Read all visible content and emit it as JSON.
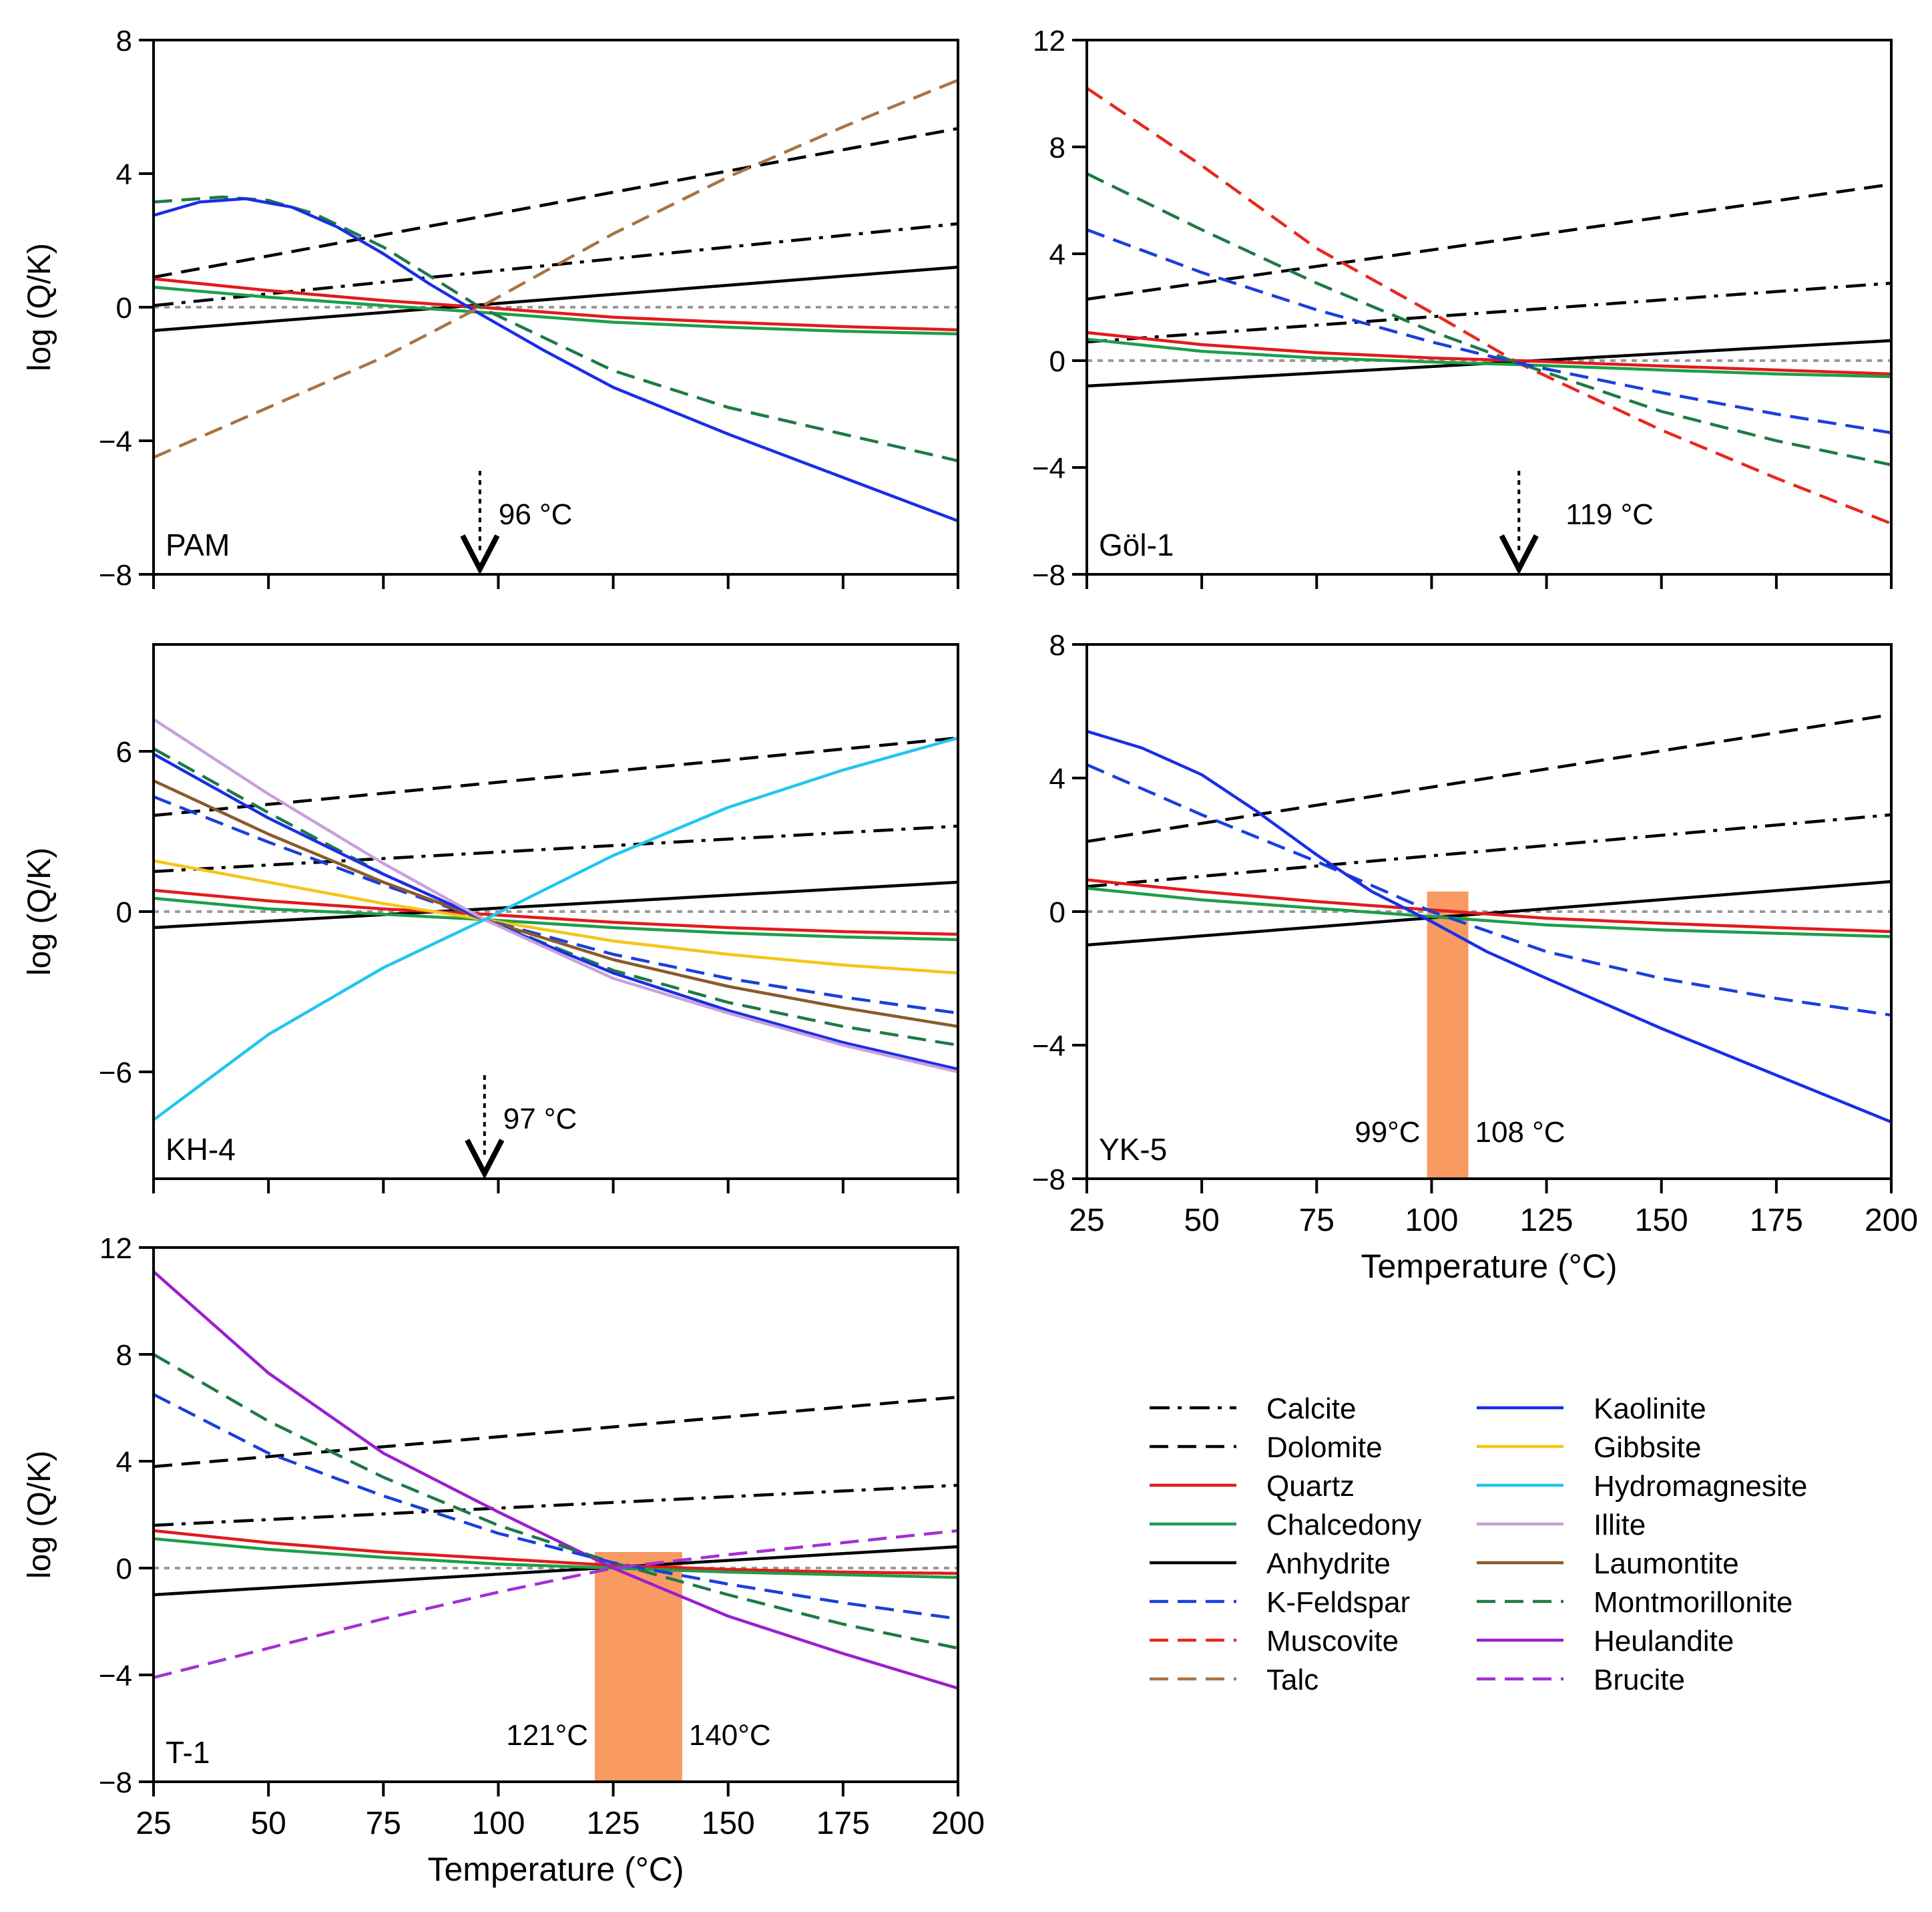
{
  "colors": {
    "Calcite": "#000000",
    "Dolomite": "#000000",
    "Quartz": "#e31a1c",
    "Chalcedony": "#1e9e4a",
    "Anhydrite": "#000000",
    "K-Feldspar": "#1a3fdc",
    "Muscovite": "#e8281e",
    "Talc": "#a87445",
    "Kaolinite": "#1a2ee6",
    "Gibbsite": "#f5c518",
    "Hydromagnesite": "#22c6ee",
    "Illite": "#c9a0dc",
    "Laumontite": "#8b5a2b",
    "Montmorillonite": "#1d7a45",
    "Heulandite": "#9b1fce",
    "Brucite": "#a42fd6",
    "zero_line": "#999999",
    "band": "#f99a63"
  },
  "styles": {
    "Calcite": "dashdot",
    "Dolomite": "dashed",
    "Quartz": "solid",
    "Chalcedony": "solid",
    "Anhydrite": "solid",
    "K-Feldspar": "dashed",
    "Muscovite": "dashed",
    "Talc": "dashed",
    "Kaolinite": "solid",
    "Gibbsite": "solid",
    "Hydromagnesite": "solid",
    "Illite": "solid",
    "Laumontite": "solid",
    "Montmorillonite": "dashed",
    "Heulandite": "solid",
    "Brucite": "dashed"
  },
  "legend": {
    "col1": [
      "Calcite",
      "Dolomite",
      "Quartz",
      "Chalcedony",
      "Anhydrite",
      "K-Feldspar",
      "Muscovite",
      "Talc"
    ],
    "col2": [
      "Kaolinite",
      "Gibbsite",
      "Hydromagnesite",
      "Illite",
      "Laumontite",
      "Montmorillonite",
      "Heulandite",
      "Brucite"
    ]
  },
  "chart_data": [
    {
      "type": "line",
      "name": "PAM",
      "ylabel": "log (Q/K)",
      "xlabel": "",
      "xlim": [
        25,
        200
      ],
      "ylim": [
        -8,
        8
      ],
      "yticks": [
        -8,
        -4,
        0,
        4,
        8
      ],
      "xticks": [
        25,
        50,
        75,
        100,
        125,
        150,
        175,
        200
      ],
      "show_xticklabels": false,
      "marker": {
        "x": 96,
        "label": "96 °C"
      },
      "series": [
        {
          "name": "Dolomite",
          "x": [
            25,
            200
          ],
          "y": [
            0.9,
            5.35
          ]
        },
        {
          "name": "Calcite",
          "x": [
            25,
            200
          ],
          "y": [
            0.05,
            2.5
          ]
        },
        {
          "name": "Anhydrite",
          "x": [
            25,
            200
          ],
          "y": [
            -0.7,
            1.2
          ]
        },
        {
          "name": "Quartz",
          "x": [
            25,
            50,
            75,
            96,
            125,
            150,
            175,
            200
          ],
          "y": [
            0.85,
            0.5,
            0.2,
            0.0,
            -0.3,
            -0.45,
            -0.58,
            -0.68
          ]
        },
        {
          "name": "Chalcedony",
          "x": [
            25,
            50,
            75,
            96,
            125,
            150,
            175,
            200
          ],
          "y": [
            0.6,
            0.3,
            0.05,
            -0.15,
            -0.45,
            -0.6,
            -0.72,
            -0.8
          ]
        },
        {
          "name": "Montmorillonite",
          "x": [
            25,
            40,
            50,
            60,
            75,
            96,
            125,
            150,
            175,
            200
          ],
          "y": [
            3.15,
            3.3,
            3.2,
            2.8,
            1.8,
            0.0,
            -1.9,
            -3.0,
            -3.8,
            -4.6
          ]
        },
        {
          "name": "Kaolinite",
          "x": [
            25,
            35,
            45,
            55,
            65,
            75,
            85,
            96,
            110,
            125,
            150,
            175,
            200
          ],
          "y": [
            2.75,
            3.15,
            3.25,
            3.0,
            2.4,
            1.6,
            0.7,
            -0.2,
            -1.3,
            -2.4,
            -3.8,
            -5.1,
            -6.4
          ]
        },
        {
          "name": "Talc",
          "x": [
            25,
            50,
            75,
            96,
            125,
            150,
            175,
            200
          ],
          "y": [
            -4.5,
            -3.0,
            -1.5,
            0.0,
            2.2,
            3.9,
            5.4,
            6.8
          ]
        }
      ]
    },
    {
      "type": "line",
      "name": "Göl-1",
      "ylabel": "",
      "xlabel": "",
      "xlim": [
        25,
        200
      ],
      "ylim": [
        -8,
        12
      ],
      "yticks": [
        -8,
        -4,
        0,
        4,
        8,
        12
      ],
      "xticks": [
        25,
        50,
        75,
        100,
        125,
        150,
        175,
        200
      ],
      "show_xticklabels": false,
      "marker": {
        "x": 119,
        "label": "119 °C"
      },
      "series": [
        {
          "name": "Dolomite",
          "x": [
            25,
            200
          ],
          "y": [
            2.3,
            6.6
          ]
        },
        {
          "name": "Calcite",
          "x": [
            25,
            200
          ],
          "y": [
            0.7,
            2.9
          ]
        },
        {
          "name": "Anhydrite",
          "x": [
            25,
            200
          ],
          "y": [
            -0.95,
            0.75
          ]
        },
        {
          "name": "Quartz",
          "x": [
            25,
            50,
            75,
            100,
            119,
            150,
            175,
            200
          ],
          "y": [
            1.05,
            0.6,
            0.3,
            0.1,
            0.0,
            -0.2,
            -0.35,
            -0.5
          ]
        },
        {
          "name": "Chalcedony",
          "x": [
            25,
            50,
            75,
            100,
            119,
            150,
            175,
            200
          ],
          "y": [
            0.8,
            0.35,
            0.1,
            -0.05,
            -0.15,
            -0.35,
            -0.5,
            -0.6
          ]
        },
        {
          "name": "Muscovite",
          "x": [
            25,
            50,
            75,
            100,
            119,
            150,
            175,
            200
          ],
          "y": [
            10.2,
            7.3,
            4.2,
            1.8,
            -0.1,
            -2.6,
            -4.4,
            -6.1
          ]
        },
        {
          "name": "Montmorillonite",
          "x": [
            25,
            50,
            75,
            100,
            119,
            150,
            175,
            200
          ],
          "y": [
            7.0,
            4.9,
            2.9,
            1.1,
            -0.1,
            -1.9,
            -3.0,
            -3.9
          ]
        },
        {
          "name": "K-Feldspar",
          "x": [
            25,
            50,
            75,
            100,
            119,
            150,
            175,
            200
          ],
          "y": [
            4.9,
            3.3,
            1.9,
            0.7,
            -0.1,
            -1.2,
            -2.0,
            -2.7
          ]
        }
      ]
    },
    {
      "type": "line",
      "name": "KH-4",
      "ylabel": "log (Q/K)",
      "xlabel": "",
      "xlim": [
        25,
        200
      ],
      "ylim": [
        -10,
        10
      ],
      "yticks": [
        -6,
        0,
        6
      ],
      "xticks": [
        25,
        50,
        75,
        100,
        125,
        150,
        175,
        200
      ],
      "show_xticklabels": false,
      "marker": {
        "x": 97,
        "label": "97 °C"
      },
      "series": [
        {
          "name": "Dolomite",
          "x": [
            25,
            200
          ],
          "y": [
            3.6,
            6.5
          ]
        },
        {
          "name": "Calcite",
          "x": [
            25,
            200
          ],
          "y": [
            1.5,
            3.2
          ]
        },
        {
          "name": "Anhydrite",
          "x": [
            25,
            200
          ],
          "y": [
            -0.6,
            1.1
          ]
        },
        {
          "name": "Quartz",
          "x": [
            25,
            50,
            75,
            97,
            125,
            150,
            175,
            200
          ],
          "y": [
            0.8,
            0.4,
            0.1,
            -0.1,
            -0.4,
            -0.6,
            -0.75,
            -0.85
          ]
        },
        {
          "name": "Chalcedony",
          "x": [
            25,
            50,
            75,
            97,
            125,
            150,
            175,
            200
          ],
          "y": [
            0.5,
            0.1,
            -0.1,
            -0.3,
            -0.6,
            -0.8,
            -0.95,
            -1.05
          ]
        },
        {
          "name": "Gibbsite",
          "x": [
            25,
            50,
            75,
            97,
            125,
            150,
            175,
            200
          ],
          "y": [
            1.9,
            1.1,
            0.3,
            -0.3,
            -1.1,
            -1.6,
            -2.0,
            -2.3
          ]
        },
        {
          "name": "K-Feldspar",
          "x": [
            25,
            50,
            75,
            97,
            125,
            150,
            175,
            200
          ],
          "y": [
            4.3,
            2.6,
            1.0,
            -0.3,
            -1.6,
            -2.5,
            -3.2,
            -3.8
          ]
        },
        {
          "name": "Laumontite",
          "x": [
            25,
            50,
            75,
            97,
            125,
            150,
            175,
            200
          ],
          "y": [
            4.9,
            2.9,
            1.1,
            -0.3,
            -1.8,
            -2.8,
            -3.6,
            -4.3
          ]
        },
        {
          "name": "Montmorillonite",
          "x": [
            25,
            50,
            75,
            97,
            125,
            150,
            175,
            200
          ],
          "y": [
            6.1,
            3.7,
            1.4,
            -0.3,
            -2.2,
            -3.4,
            -4.3,
            -5.0
          ]
        },
        {
          "name": "Kaolinite",
          "x": [
            25,
            50,
            75,
            97,
            125,
            150,
            175,
            200
          ],
          "y": [
            5.9,
            3.5,
            1.4,
            -0.3,
            -2.3,
            -3.7,
            -4.9,
            -5.9
          ]
        },
        {
          "name": "Illite",
          "x": [
            25,
            50,
            75,
            97,
            125,
            150,
            175,
            200
          ],
          "y": [
            7.2,
            4.4,
            1.8,
            -0.3,
            -2.5,
            -3.8,
            -5.0,
            -6.0
          ]
        },
        {
          "name": "Hydromagnesite",
          "x": [
            25,
            50,
            75,
            97,
            125,
            150,
            175,
            200
          ],
          "y": [
            -7.8,
            -4.6,
            -2.1,
            -0.3,
            2.1,
            3.9,
            5.3,
            6.5
          ]
        }
      ]
    },
    {
      "type": "line",
      "name": "YK-5",
      "ylabel": "",
      "xlabel": "Temperature (°C)",
      "xlim": [
        25,
        200
      ],
      "ylim": [
        -8,
        8
      ],
      "yticks": [
        -8,
        -4,
        0,
        4,
        8
      ],
      "xticks": [
        25,
        50,
        75,
        100,
        125,
        150,
        175,
        200
      ],
      "show_xticklabels": true,
      "band": {
        "from": 99,
        "to": 108,
        "label_left": "99°C",
        "label_right": "108 °C"
      },
      "series": [
        {
          "name": "Dolomite",
          "x": [
            25,
            200
          ],
          "y": [
            2.1,
            5.9
          ]
        },
        {
          "name": "Calcite",
          "x": [
            25,
            200
          ],
          "y": [
            0.75,
            2.9
          ]
        },
        {
          "name": "Anhydrite",
          "x": [
            25,
            200
          ],
          "y": [
            -1.0,
            0.9
          ]
        },
        {
          "name": "Quartz",
          "x": [
            25,
            50,
            75,
            100,
            125,
            150,
            175,
            200
          ],
          "y": [
            0.95,
            0.6,
            0.3,
            0.05,
            -0.2,
            -0.35,
            -0.48,
            -0.6
          ]
        },
        {
          "name": "Chalcedony",
          "x": [
            25,
            50,
            75,
            100,
            125,
            150,
            175,
            200
          ],
          "y": [
            0.7,
            0.35,
            0.1,
            -0.15,
            -0.4,
            -0.55,
            -0.65,
            -0.75
          ]
        },
        {
          "name": "K-Feldspar",
          "x": [
            25,
            50,
            75,
            100,
            125,
            150,
            175,
            200
          ],
          "y": [
            4.4,
            2.9,
            1.5,
            0.0,
            -1.2,
            -2.0,
            -2.6,
            -3.1
          ]
        },
        {
          "name": "Kaolinite",
          "x": [
            25,
            37,
            50,
            62,
            75,
            87,
            100,
            112,
            125,
            150,
            175,
            200
          ],
          "y": [
            5.4,
            4.9,
            4.1,
            3.0,
            1.7,
            0.6,
            -0.3,
            -1.2,
            -2.0,
            -3.5,
            -4.9,
            -6.3
          ]
        }
      ]
    },
    {
      "type": "line",
      "name": "T-1",
      "ylabel": "log (Q/K)",
      "xlabel": "Temperature (°C)",
      "xlim": [
        25,
        200
      ],
      "ylim": [
        -8,
        12
      ],
      "yticks": [
        -8,
        -4,
        0,
        4,
        8,
        12
      ],
      "xticks": [
        25,
        50,
        75,
        100,
        125,
        150,
        175,
        200
      ],
      "show_xticklabels": true,
      "band": {
        "from": 121,
        "to": 140,
        "label_left": "121°C",
        "label_right": "140°C"
      },
      "series": [
        {
          "name": "Dolomite",
          "x": [
            25,
            200
          ],
          "y": [
            3.8,
            6.4
          ]
        },
        {
          "name": "Calcite",
          "x": [
            25,
            200
          ],
          "y": [
            1.6,
            3.1
          ]
        },
        {
          "name": "Anhydrite",
          "x": [
            25,
            200
          ],
          "y": [
            -1.0,
            0.8
          ]
        },
        {
          "name": "Quartz",
          "x": [
            25,
            50,
            75,
            100,
            125,
            150,
            175,
            200
          ],
          "y": [
            1.4,
            0.95,
            0.6,
            0.35,
            0.1,
            -0.05,
            -0.15,
            -0.2
          ]
        },
        {
          "name": "Chalcedony",
          "x": [
            25,
            50,
            75,
            100,
            125,
            150,
            175,
            200
          ],
          "y": [
            1.1,
            0.7,
            0.4,
            0.15,
            0.0,
            -0.15,
            -0.25,
            -0.35
          ]
        },
        {
          "name": "Heulandite",
          "x": [
            25,
            50,
            75,
            100,
            125,
            150,
            175,
            200
          ],
          "y": [
            11.1,
            7.3,
            4.3,
            2.1,
            0.0,
            -1.8,
            -3.2,
            -4.5
          ]
        },
        {
          "name": "Montmorillonite",
          "x": [
            25,
            50,
            75,
            100,
            125,
            150,
            175,
            200
          ],
          "y": [
            8.0,
            5.5,
            3.4,
            1.6,
            0.2,
            -1.0,
            -2.1,
            -3.0
          ]
        },
        {
          "name": "K-Feldspar",
          "x": [
            25,
            50,
            75,
            100,
            125,
            150,
            175,
            200
          ],
          "y": [
            6.5,
            4.3,
            2.7,
            1.3,
            0.2,
            -0.6,
            -1.3,
            -1.9
          ]
        },
        {
          "name": "Brucite",
          "x": [
            25,
            50,
            75,
            100,
            125,
            150,
            175,
            200
          ],
          "y": [
            -4.1,
            -3.0,
            -1.9,
            -0.9,
            0.0,
            0.5,
            0.95,
            1.4
          ]
        }
      ]
    }
  ]
}
